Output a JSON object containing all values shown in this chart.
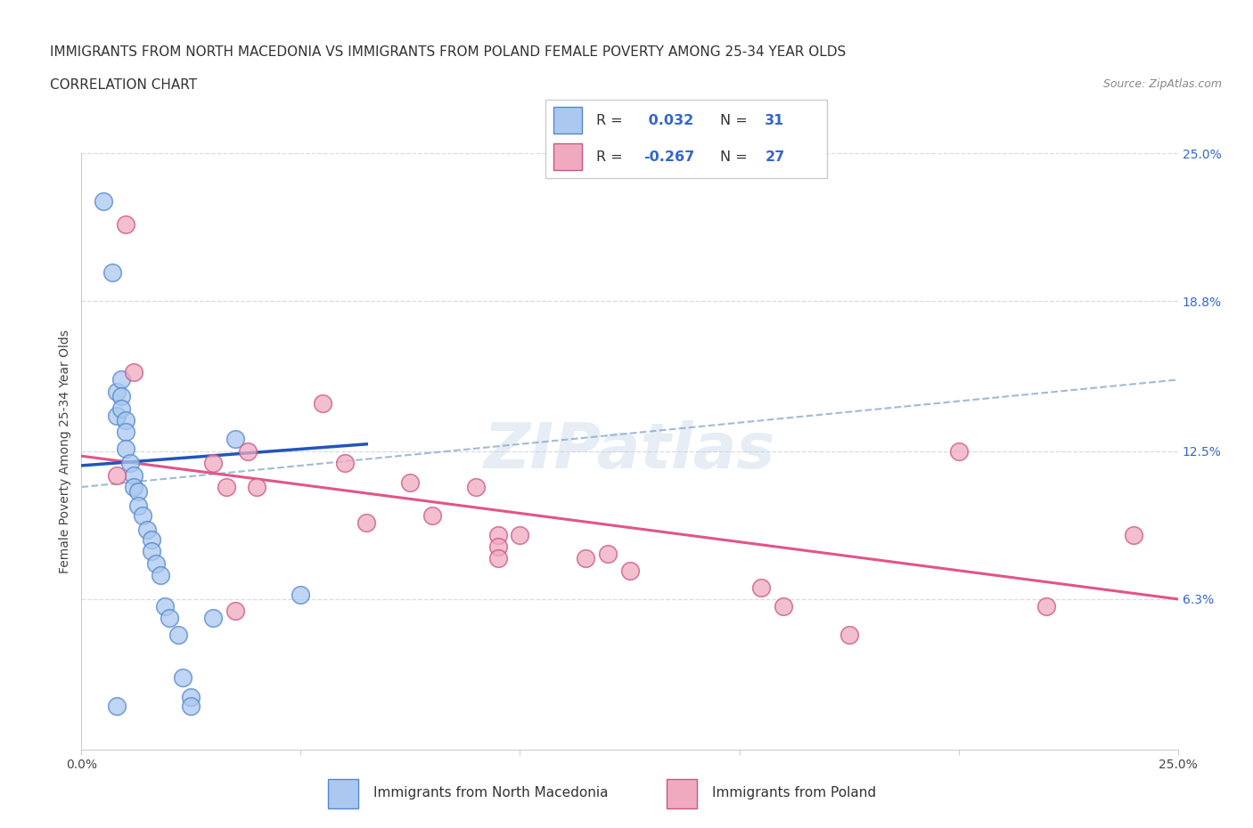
{
  "title_line1": "IMMIGRANTS FROM NORTH MACEDONIA VS IMMIGRANTS FROM POLAND FEMALE POVERTY AMONG 25-34 YEAR OLDS",
  "title_line2": "CORRELATION CHART",
  "source_text": "Source: ZipAtlas.com",
  "ylabel": "Female Poverty Among 25-34 Year Olds",
  "xlim": [
    0.0,
    0.25
  ],
  "ylim": [
    0.0,
    0.25
  ],
  "ytick_labels_right": [
    "25.0%",
    "18.8%",
    "12.5%",
    "6.3%"
  ],
  "ytick_positions_right": [
    0.25,
    0.188,
    0.125,
    0.063
  ],
  "grid_color": "#d8d8e8",
  "background_color": "#ffffff",
  "watermark": "ZIPatlas",
  "north_macedonia_color": "#aac8f0",
  "north_macedonia_edge": "#5588cc",
  "poland_color": "#f0aac0",
  "poland_edge": "#cc5588",
  "R_macedonia": 0.032,
  "N_macedonia": 31,
  "R_poland": -0.267,
  "N_poland": 27,
  "macedonia_x": [
    0.005,
    0.007,
    0.008,
    0.008,
    0.009,
    0.009,
    0.009,
    0.01,
    0.01,
    0.01,
    0.011,
    0.012,
    0.012,
    0.013,
    0.013,
    0.014,
    0.015,
    0.016,
    0.016,
    0.017,
    0.018,
    0.019,
    0.02,
    0.022,
    0.023,
    0.025,
    0.025,
    0.03,
    0.035,
    0.05,
    0.008
  ],
  "macedonia_y": [
    0.23,
    0.2,
    0.15,
    0.14,
    0.155,
    0.148,
    0.143,
    0.138,
    0.133,
    0.126,
    0.12,
    0.115,
    0.11,
    0.108,
    0.102,
    0.098,
    0.092,
    0.088,
    0.083,
    0.078,
    0.073,
    0.06,
    0.055,
    0.048,
    0.03,
    0.022,
    0.018,
    0.055,
    0.13,
    0.065,
    0.018
  ],
  "poland_x": [
    0.008,
    0.01,
    0.012,
    0.03,
    0.033,
    0.038,
    0.04,
    0.055,
    0.06,
    0.065,
    0.075,
    0.08,
    0.09,
    0.095,
    0.095,
    0.095,
    0.1,
    0.115,
    0.12,
    0.125,
    0.155,
    0.16,
    0.175,
    0.2,
    0.22,
    0.24,
    0.035
  ],
  "poland_y": [
    0.115,
    0.22,
    0.158,
    0.12,
    0.11,
    0.125,
    0.11,
    0.145,
    0.12,
    0.095,
    0.112,
    0.098,
    0.11,
    0.09,
    0.085,
    0.08,
    0.09,
    0.08,
    0.082,
    0.075,
    0.068,
    0.06,
    0.048,
    0.125,
    0.06,
    0.09,
    0.058
  ],
  "macedonia_trend_x": [
    0.0,
    0.065
  ],
  "macedonia_trend_y": [
    0.119,
    0.128
  ],
  "poland_trend_x": [
    0.0,
    0.25
  ],
  "poland_trend_y": [
    0.123,
    0.063
  ],
  "dashed_trend_x": [
    0.0,
    0.25
  ],
  "dashed_trend_y": [
    0.11,
    0.155
  ],
  "title_fontsize": 11,
  "subtitle_fontsize": 11,
  "axis_label_fontsize": 10,
  "tick_fontsize": 10,
  "legend_fontsize": 11
}
